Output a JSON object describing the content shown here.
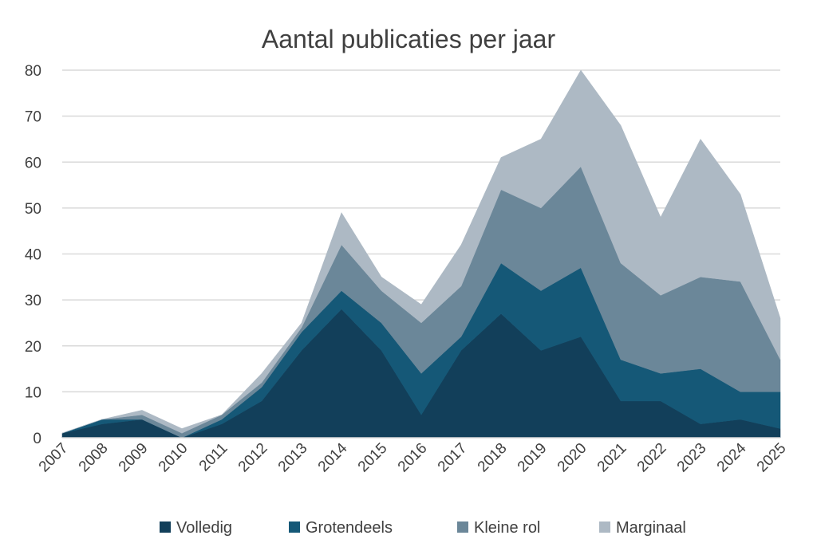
{
  "chart_data": {
    "type": "area",
    "stacked": true,
    "title": "Aantal publicaties per jaar",
    "xlabel": "",
    "ylabel": "",
    "ylim": [
      0,
      80
    ],
    "yticks": [
      "0",
      "10",
      "20",
      "30",
      "40",
      "50",
      "60",
      "70",
      "80"
    ],
    "grid": true,
    "legend_position": "bottom",
    "categories": [
      "2007",
      "2008",
      "2009",
      "2010",
      "2011",
      "2012",
      "2013",
      "2014",
      "2015",
      "2016",
      "2017",
      "2018",
      "2019",
      "2020",
      "2021",
      "2022",
      "2023",
      "2024",
      "2025"
    ],
    "series": [
      {
        "name": "Volledig",
        "color": "#123f5a",
        "values": [
          1,
          3,
          4,
          0,
          3,
          8,
          19,
          28,
          19,
          5,
          19,
          27,
          19,
          22,
          8,
          8,
          3,
          4,
          2
        ]
      },
      {
        "name": "Grotendeels",
        "color": "#155877",
        "values": [
          0,
          1,
          0,
          0,
          1,
          3,
          4,
          4,
          6,
          9,
          3,
          11,
          13,
          15,
          9,
          6,
          12,
          6,
          8
        ]
      },
      {
        "name": "Kleine rol",
        "color": "#6b8799",
        "values": [
          0,
          0,
          1,
          1,
          1,
          1,
          1,
          10,
          7,
          11,
          11,
          16,
          18,
          22,
          21,
          17,
          20,
          24,
          7
        ]
      },
      {
        "name": "Marginaal",
        "color": "#adb9c4",
        "values": [
          0,
          0,
          1,
          1,
          0,
          2,
          1,
          7,
          3,
          4,
          9,
          7,
          15,
          21,
          30,
          17,
          30,
          19,
          9
        ]
      }
    ]
  }
}
